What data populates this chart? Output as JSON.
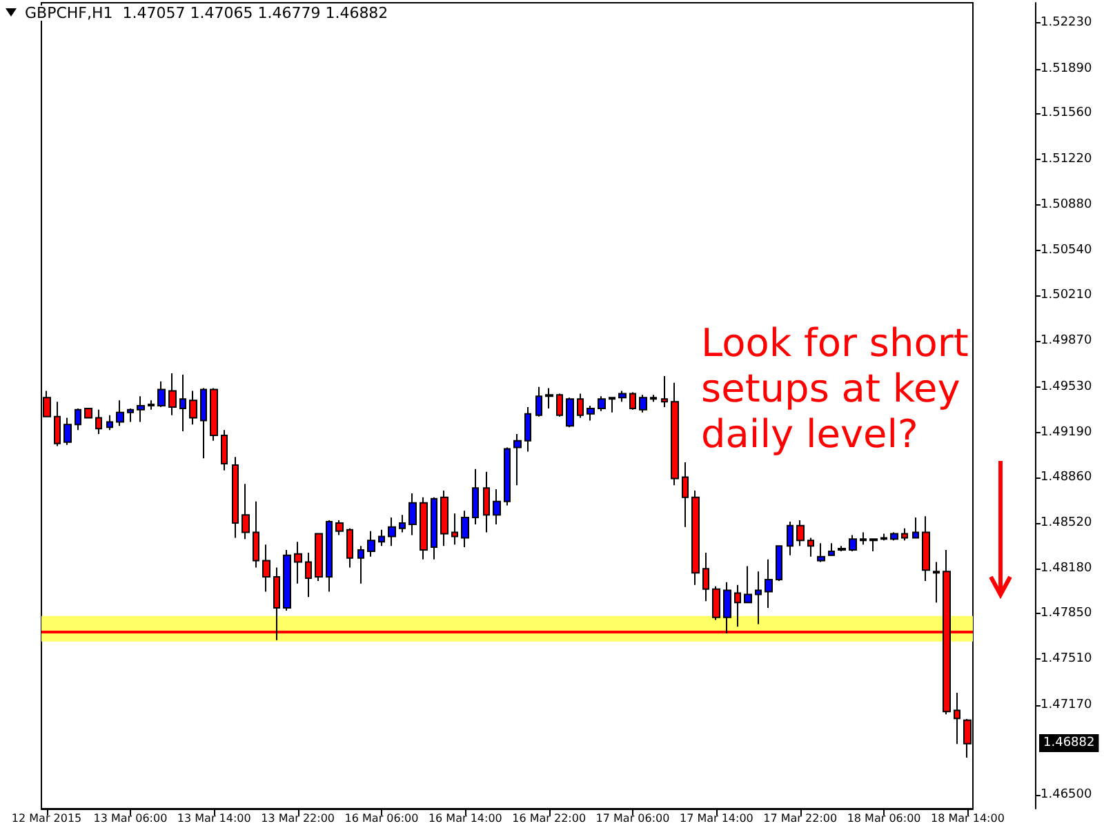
{
  "chart_data": {
    "type": "candlestick",
    "title": "GBPCHF,H1  1.47057 1.47065 1.46779 1.46882",
    "categories": [
      "12 Mar 2015",
      null,
      null,
      null,
      null,
      null,
      null,
      null,
      "13 Mar 06:00",
      null,
      null,
      null,
      null,
      null,
      null,
      null,
      "13 Mar 14:00",
      null,
      null,
      null,
      null,
      null,
      null,
      null,
      "13 Mar 22:00",
      null,
      null,
      null,
      null,
      null,
      null,
      null,
      "16 Mar 06:00",
      null,
      null,
      null,
      null,
      null,
      null,
      null,
      "16 Mar 14:00",
      null,
      null,
      null,
      null,
      null,
      null,
      null,
      "16 Mar 22:00",
      null,
      null,
      null,
      null,
      null,
      null,
      null,
      "17 Mar 06:00",
      null,
      null,
      null,
      null,
      null,
      null,
      null,
      "17 Mar 14:00",
      null,
      null,
      null,
      null,
      null,
      null,
      null,
      "17 Mar 22:00",
      null,
      null,
      null,
      null,
      null,
      null,
      null,
      "18 Mar 06:00",
      null,
      null,
      null,
      null,
      null,
      null,
      null,
      "18 Mar 14:00"
    ],
    "ohlc": [
      [
        1.4945,
        1.495,
        1.4931,
        1.4931
      ],
      [
        1.4931,
        1.4942,
        1.4909,
        1.4911
      ],
      [
        1.4912,
        1.493,
        1.491,
        1.4925
      ],
      [
        1.4925,
        1.4937,
        1.4921,
        1.4936
      ],
      [
        1.4937,
        1.4937,
        1.493,
        1.493
      ],
      [
        1.493,
        1.4936,
        1.4918,
        1.4922
      ],
      [
        1.4923,
        1.4932,
        1.4921,
        1.4927
      ],
      [
        1.4927,
        1.4943,
        1.4924,
        1.4934
      ],
      [
        1.4934,
        1.4937,
        1.4927,
        1.4936
      ],
      [
        1.4936,
        1.4946,
        1.4927,
        1.4939
      ],
      [
        1.4939,
        1.4943,
        1.4936,
        1.494
      ],
      [
        1.4939,
        1.4957,
        1.4938,
        1.4951
      ],
      [
        1.495,
        1.4963,
        1.4932,
        1.4938
      ],
      [
        1.4937,
        1.4962,
        1.492,
        1.4944
      ],
      [
        1.4943,
        1.495,
        1.4925,
        1.493
      ],
      [
        1.4928,
        1.4952,
        1.49,
        1.4951
      ],
      [
        1.4951,
        1.4952,
        1.4913,
        1.4917
      ],
      [
        1.4917,
        1.4921,
        1.4891,
        1.4896
      ],
      [
        1.4895,
        1.4901,
        1.4841,
        1.4852
      ],
      [
        1.4858,
        1.4881,
        1.484,
        1.4845
      ],
      [
        1.4845,
        1.4868,
        1.4819,
        1.4824
      ],
      [
        1.4824,
        1.4836,
        1.4801,
        1.4812
      ],
      [
        1.4812,
        1.4819,
        1.4765,
        1.4789
      ],
      [
        1.4789,
        1.4832,
        1.4787,
        1.4828
      ],
      [
        1.4829,
        1.4838,
        1.4807,
        1.4823
      ],
      [
        1.4823,
        1.483,
        1.4797,
        1.4811
      ],
      [
        1.4844,
        1.4844,
        1.4809,
        1.4812
      ],
      [
        1.4812,
        1.4854,
        1.4801,
        1.4853
      ],
      [
        1.4852,
        1.4854,
        1.4843,
        1.4846
      ],
      [
        1.4847,
        1.4848,
        1.4819,
        1.4826
      ],
      [
        1.4826,
        1.4835,
        1.4807,
        1.4832
      ],
      [
        1.4831,
        1.4846,
        1.4827,
        1.4839
      ],
      [
        1.4838,
        1.4847,
        1.4835,
        1.4842
      ],
      [
        1.4842,
        1.4856,
        1.4835,
        1.4849
      ],
      [
        1.4848,
        1.4858,
        1.4845,
        1.4852
      ],
      [
        1.4851,
        1.4874,
        1.4843,
        1.4867
      ],
      [
        1.4867,
        1.4871,
        1.4825,
        1.4832
      ],
      [
        1.4834,
        1.4871,
        1.4825,
        1.487
      ],
      [
        1.4871,
        1.4876,
        1.4835,
        1.4844
      ],
      [
        1.4845,
        1.4859,
        1.4836,
        1.4842
      ],
      [
        1.4841,
        1.4861,
        1.4834,
        1.4856
      ],
      [
        1.4856,
        1.4892,
        1.4851,
        1.4878
      ],
      [
        1.4878,
        1.489,
        1.4845,
        1.4858
      ],
      [
        1.4858,
        1.4877,
        1.4851,
        1.4868
      ],
      [
        1.4868,
        1.4908,
        1.4865,
        1.4907
      ],
      [
        1.4908,
        1.4918,
        1.488,
        1.4913
      ],
      [
        1.4913,
        1.4938,
        1.4905,
        1.4933
      ],
      [
        1.4932,
        1.4953,
        1.4931,
        1.4946
      ],
      [
        1.4947,
        1.4952,
        1.4937,
        1.4946
      ],
      [
        1.4947,
        1.4948,
        1.4931,
        1.4932
      ],
      [
        1.4924,
        1.4945,
        1.4923,
        1.4944
      ],
      [
        1.4944,
        1.4948,
        1.493,
        1.4932
      ],
      [
        1.4933,
        1.4939,
        1.4928,
        1.4937
      ],
      [
        1.4937,
        1.4946,
        1.4935,
        1.4944
      ],
      [
        1.4944,
        1.4945,
        1.4934,
        1.4945
      ],
      [
        1.4945,
        1.495,
        1.4942,
        1.4948
      ],
      [
        1.4948,
        1.4949,
        1.4936,
        1.4937
      ],
      [
        1.4936,
        1.4947,
        1.4934,
        1.4945
      ],
      [
        1.4944,
        1.4947,
        1.4942,
        1.4945
      ],
      [
        1.4944,
        1.4961,
        1.4938,
        1.4942
      ],
      [
        1.4942,
        1.4956,
        1.488,
        1.4885
      ],
      [
        1.4886,
        1.4897,
        1.4849,
        1.4871
      ],
      [
        1.4871,
        1.4876,
        1.4806,
        1.4815
      ],
      [
        1.4818,
        1.483,
        1.4794,
        1.4803
      ],
      [
        1.4803,
        1.4805,
        1.478,
        1.4782
      ],
      [
        1.4782,
        1.4808,
        1.477,
        1.4802
      ],
      [
        1.48,
        1.4806,
        1.4775,
        1.4793
      ],
      [
        1.4793,
        1.482,
        1.4793,
        1.4799
      ],
      [
        1.4799,
        1.4816,
        1.4777,
        1.4802
      ],
      [
        1.4801,
        1.4825,
        1.4789,
        1.481
      ],
      [
        1.481,
        1.4835,
        1.4809,
        1.4835
      ],
      [
        1.4835,
        1.4853,
        1.4828,
        1.485
      ],
      [
        1.485,
        1.4854,
        1.4835,
        1.4839
      ],
      [
        1.4839,
        1.4841,
        1.4827,
        1.4835
      ],
      [
        1.4824,
        1.4837,
        1.4823,
        1.4827
      ],
      [
        1.4828,
        1.4837,
        1.4828,
        1.4831
      ],
      [
        1.4832,
        1.4835,
        1.4831,
        1.4833
      ],
      [
        1.4832,
        1.4843,
        1.4831,
        1.484
      ],
      [
        1.4839,
        1.4845,
        1.4836,
        1.484
      ],
      [
        1.484,
        1.484,
        1.4831,
        1.4839
      ],
      [
        1.484,
        1.4844,
        1.4839,
        1.4841
      ],
      [
        1.484,
        1.4845,
        1.4839,
        1.4844
      ],
      [
        1.4844,
        1.4848,
        1.4839,
        1.4841
      ],
      [
        1.4841,
        1.4856,
        1.4841,
        1.4845
      ],
      [
        1.4845,
        1.4857,
        1.4809,
        1.4817
      ],
      [
        1.4816,
        1.4823,
        1.4793,
        1.4815
      ],
      [
        1.4816,
        1.4832,
        1.471,
        1.4712
      ],
      [
        1.4713,
        1.4726,
        1.4688,
        1.4707
      ],
      [
        1.47057,
        1.47065,
        1.46779,
        1.46882
      ]
    ],
    "colors": [
      "#ff0000",
      "#ff0000",
      "#0000ff",
      "#0000ff",
      "#ff0000",
      "#ff0000",
      "#0000ff",
      "#0000ff",
      "#0000ff",
      "#0000ff",
      "#0000ff",
      "#0000ff",
      "#ff0000",
      "#0000ff",
      "#ff0000",
      "#0000ff",
      "#ff0000",
      "#ff0000",
      "#ff0000",
      "#ff0000",
      "#ff0000",
      "#ff0000",
      "#ff0000",
      "#0000ff",
      "#ff0000",
      "#ff0000",
      "#ff0000",
      "#0000ff",
      "#ff0000",
      "#ff0000",
      "#0000ff",
      "#0000ff",
      "#0000ff",
      "#0000ff",
      "#0000ff",
      "#0000ff",
      "#ff0000",
      "#0000ff",
      "#ff0000",
      "#ff0000",
      "#0000ff",
      "#0000ff",
      "#ff0000",
      "#0000ff",
      "#0000ff",
      "#0000ff",
      "#0000ff",
      "#0000ff",
      "#ff0000",
      "#ff0000",
      "#0000ff",
      "#ff0000",
      "#0000ff",
      "#0000ff",
      "#0000ff",
      "#0000ff",
      "#ff0000",
      "#0000ff",
      "#0000ff",
      "#ff0000",
      "#ff0000",
      "#ff0000",
      "#ff0000",
      "#ff0000",
      "#ff0000",
      "#0000ff",
      "#ff0000",
      "#0000ff",
      "#0000ff",
      "#0000ff",
      "#0000ff",
      "#0000ff",
      "#ff0000",
      "#ff0000",
      "#0000ff",
      "#0000ff",
      "#0000ff",
      "#0000ff",
      "#0000ff",
      "#ff0000",
      "#0000ff",
      "#0000ff",
      "#ff0000",
      "#0000ff",
      "#ff0000",
      "#ff0000",
      "#ff0000",
      "#ff0000",
      "#ff0000"
    ],
    "ylim": [
      1.464,
      1.5238
    ],
    "yticks": [
      {
        "value": 1.465,
        "label": "1.46500"
      },
      {
        "value": 1.4717,
        "label": "1.47170"
      },
      {
        "value": 1.4751,
        "label": "1.47510"
      },
      {
        "value": 1.4785,
        "label": "1.47850"
      },
      {
        "value": 1.4818,
        "label": "1.48180"
      },
      {
        "value": 1.4852,
        "label": "1.48520"
      },
      {
        "value": 1.4886,
        "label": "1.48860"
      },
      {
        "value": 1.4919,
        "label": "1.49190"
      },
      {
        "value": 1.4953,
        "label": "1.49530"
      },
      {
        "value": 1.4987,
        "label": "1.49870"
      },
      {
        "value": 1.5021,
        "label": "1.50210"
      },
      {
        "value": 1.5054,
        "label": "1.50540"
      },
      {
        "value": 1.5088,
        "label": "1.50880"
      },
      {
        "value": 1.5122,
        "label": "1.51220"
      },
      {
        "value": 1.5156,
        "label": "1.51560"
      },
      {
        "value": 1.5189,
        "label": "1.51890"
      },
      {
        "value": 1.5223,
        "label": "1.52230"
      }
    ],
    "grid": false,
    "bands": [
      {
        "axis": "y",
        "from": 1.4764,
        "to": 1.4783,
        "color": "#ffff66"
      }
    ],
    "ref_lines": [
      {
        "axis": "y",
        "value": 1.4771,
        "color": "#ff0000"
      }
    ],
    "annotations": [
      "Look for short\nsetups at key\ndaily level?",
      "1.46882"
    ]
  }
}
